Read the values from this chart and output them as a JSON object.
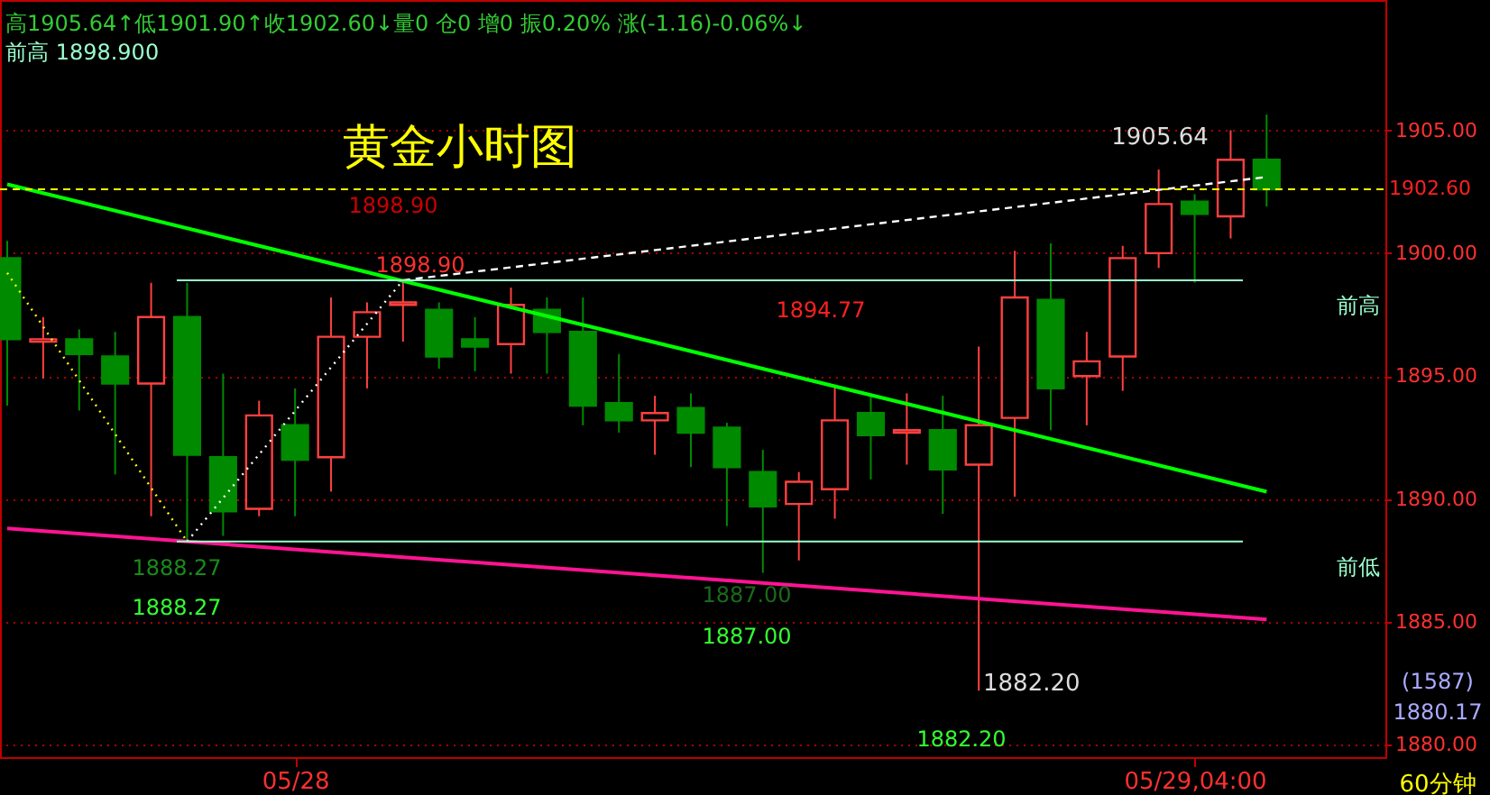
{
  "chart_data": {
    "type": "candlestick",
    "title": "黄金小时图",
    "categories": [
      null,
      null,
      null,
      null,
      null,
      null,
      null,
      null,
      "05/28",
      null,
      null,
      null,
      null,
      null,
      null,
      null,
      null,
      null,
      null,
      null,
      null,
      null,
      null,
      null,
      null,
      null,
      null,
      null,
      null,
      null,
      null,
      null,
      null,
      "05/29,04:00",
      null,
      null
    ],
    "ohlc": [
      [
        1899.8,
        1900.5,
        1893.8,
        1896.5
      ],
      [
        1896.4,
        1897.4,
        1894.9,
        1896.5
      ],
      [
        1896.5,
        1896.9,
        1893.6,
        1895.9
      ],
      [
        1895.8,
        1896.8,
        1891.0,
        1894.7
      ],
      [
        1894.7,
        1898.8,
        1889.3,
        1897.4
      ],
      [
        1897.4,
        1898.8,
        1888.27,
        1891.8
      ],
      [
        1891.7,
        1895.1,
        1888.5,
        1889.5
      ],
      [
        1889.6,
        1894.0,
        1889.3,
        1893.4
      ],
      [
        1893.0,
        1894.5,
        1889.3,
        1891.6
      ],
      [
        1891.7,
        1898.2,
        1890.3,
        1896.6
      ],
      [
        1896.6,
        1898.0,
        1894.5,
        1897.6
      ],
      [
        1897.9,
        1898.9,
        1896.4,
        1898.0
      ],
      [
        1897.7,
        1898.0,
        1895.3,
        1895.8
      ],
      [
        1896.5,
        1897.4,
        1895.2,
        1896.2
      ],
      [
        1896.3,
        1898.6,
        1895.1,
        1897.9
      ],
      [
        1897.7,
        1898.2,
        1895.1,
        1896.8
      ],
      [
        1896.8,
        1898.2,
        1893.0,
        1893.8
      ],
      [
        1893.9,
        1895.9,
        1892.7,
        1893.2
      ],
      [
        1893.2,
        1894.2,
        1891.8,
        1893.5
      ],
      [
        1893.7,
        1894.3,
        1891.3,
        1892.7
      ],
      [
        1892.9,
        1893.1,
        1888.9,
        1891.3
      ],
      [
        1891.1,
        1892.0,
        1887.0,
        1889.7
      ],
      [
        1889.8,
        1891.1,
        1887.5,
        1890.7
      ],
      [
        1890.4,
        1894.6,
        1889.2,
        1893.2
      ],
      [
        1893.5,
        1894.2,
        1890.8,
        1892.6
      ],
      [
        1892.7,
        1894.3,
        1891.4,
        1892.8
      ],
      [
        1892.8,
        1894.2,
        1889.4,
        1891.2
      ],
      [
        1891.4,
        1896.2,
        1882.2,
        1893.0
      ],
      [
        1893.3,
        1900.1,
        1890.1,
        1898.2
      ],
      [
        1898.1,
        1900.4,
        1892.8,
        1894.5
      ],
      [
        1895.0,
        1896.8,
        1893.0,
        1895.6
      ],
      [
        1895.8,
        1900.3,
        1894.4,
        1899.8
      ],
      [
        1900.0,
        1903.4,
        1899.4,
        1902.0
      ],
      [
        1902.1,
        1902.4,
        1898.8,
        1901.6
      ],
      [
        1901.5,
        1905.0,
        1900.6,
        1903.8
      ],
      [
        1903.8,
        1905.64,
        1901.9,
        1902.6
      ]
    ],
    "colors": [
      "#008a00",
      "#ff4040",
      "#008a00",
      "#008a00",
      "#ff4040",
      "#008a00",
      "#008a00",
      "#ff4040",
      "#008a00",
      "#ff4040",
      "#ff4040",
      "#ff4040",
      "#008a00",
      "#008a00",
      "#ff4040",
      "#008a00",
      "#008a00",
      "#008a00",
      "#ff4040",
      "#008a00",
      "#008a00",
      "#008a00",
      "#ff4040",
      "#ff4040",
      "#008a00",
      "#ff4040",
      "#008a00",
      "#ff4040",
      "#ff4040",
      "#008a00",
      "#ff4040",
      "#ff4040",
      "#ff4040",
      "#008a00",
      "#ff4040",
      "#008a00"
    ],
    "series": [
      {
        "type": "line",
        "color": "#00ff00",
        "line_style": "solid",
        "values": [
          1902.8,
          null,
          null,
          null,
          null,
          null,
          null,
          null,
          null,
          null,
          null,
          null,
          null,
          null,
          null,
          null,
          null,
          null,
          null,
          null,
          null,
          null,
          null,
          null,
          null,
          null,
          null,
          null,
          null,
          null,
          null,
          null,
          null,
          null,
          null,
          1890.3
        ]
      },
      {
        "type": "line",
        "color": "#ff1493",
        "line_style": "solid",
        "values": [
          1888.8,
          null,
          null,
          null,
          null,
          null,
          null,
          null,
          null,
          null,
          null,
          null,
          null,
          null,
          null,
          null,
          null,
          null,
          null,
          null,
          null,
          null,
          null,
          null,
          null,
          null,
          null,
          null,
          null,
          null,
          null,
          null,
          null,
          null,
          null,
          1885.1
        ]
      },
      {
        "type": "line",
        "color": "#ffff00",
        "line_style": "dotted",
        "values": [
          1899.2,
          null,
          null,
          null,
          null,
          1888.27,
          null,
          null,
          null,
          null,
          null,
          null,
          null,
          null,
          null,
          null,
          null,
          null,
          null,
          null,
          null,
          null,
          null,
          null,
          null,
          null,
          null,
          null,
          null,
          null,
          null,
          null,
          null,
          null,
          null,
          null
        ]
      },
      {
        "type": "line",
        "color": "#ffffff",
        "line_style": "dotted",
        "values": [
          null,
          null,
          null,
          null,
          null,
          1888.27,
          null,
          null,
          null,
          null,
          null,
          1898.9,
          null,
          null,
          null,
          null,
          null,
          null,
          null,
          null,
          null,
          null,
          null,
          null,
          null,
          null,
          null,
          null,
          null,
          null,
          null,
          null,
          null,
          null,
          null,
          null
        ]
      },
      {
        "type": "line",
        "color": "#ffffff",
        "line_style": "dashed",
        "values": [
          null,
          null,
          null,
          null,
          null,
          null,
          null,
          null,
          null,
          null,
          null,
          1898.9,
          null,
          null,
          null,
          null,
          null,
          null,
          null,
          null,
          null,
          null,
          null,
          null,
          null,
          null,
          null,
          null,
          null,
          null,
          null,
          null,
          null,
          null,
          null,
          1903.1
        ]
      }
    ],
    "ylim": [
      1879.5,
      1910.3
    ],
    "yticks": [
      {
        "value": 1880,
        "label": "1880.00"
      },
      {
        "value": 1885,
        "label": "1885.00"
      },
      {
        "value": 1890,
        "label": "1890.00"
      },
      {
        "value": 1895,
        "label": "1895.00"
      },
      {
        "value": 1900,
        "label": "1900.00"
      },
      {
        "value": 1905,
        "label": "1905.00"
      }
    ],
    "grid": "y",
    "ref_lines": [
      {
        "axis": "y",
        "value": 1898.9,
        "label": "前高",
        "color": "#99ffcc",
        "line_style": "solid"
      },
      {
        "axis": "y",
        "value": 1888.27,
        "label": "前低",
        "color": "#99ffcc",
        "line_style": "solid"
      },
      {
        "axis": "y",
        "value": 1902.6,
        "label": "1902.60",
        "color": "#ffff00",
        "line_style": "dashed"
      }
    ],
    "annotations": [
      "高1905.64↑低1901.90↑收1902.60↓量0 仓0 增0 振0.20% 涨(-1.16)-0.06%↓",
      "前高 1898.900",
      "1898.90",
      "1898.90",
      "1888.27",
      "1888.27",
      "1887.00",
      "1887.00",
      "1882.20",
      "1882.20",
      "1905.64",
      "1894.77",
      "(1587)",
      "1880.17",
      "60分钟"
    ]
  }
}
